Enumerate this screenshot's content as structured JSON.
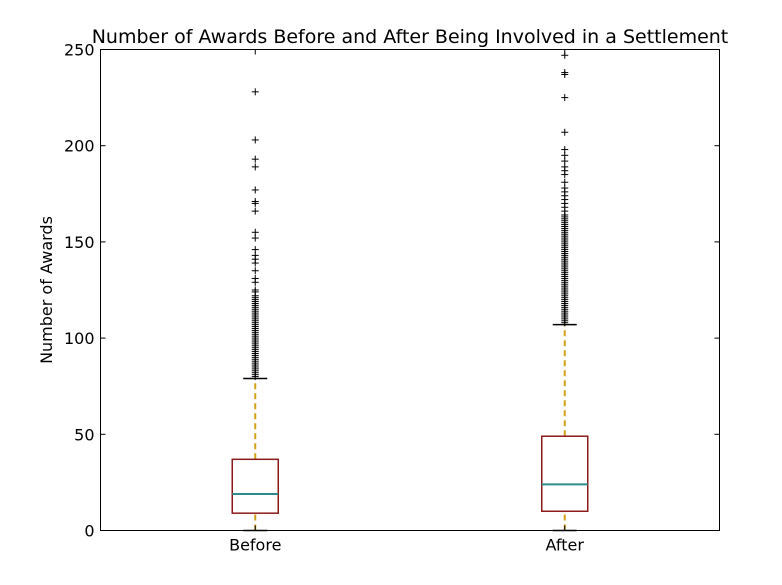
{
  "chart_data": {
    "type": "box",
    "title": "Number of Awards Before and After Being Involved in a Settlement",
    "xlabel": "",
    "ylabel": "Number of Awards",
    "ylim": [
      0,
      250
    ],
    "yticks": [
      0,
      50,
      100,
      150,
      200,
      250
    ],
    "grid": false,
    "legend": "none",
    "categories": [
      "Before",
      "After"
    ],
    "boxes": [
      {
        "label": "Before",
        "whisker_low": 0,
        "q1": 9,
        "median": 19,
        "q3": 37,
        "whisker_high": 79,
        "outliers": [
          80,
          81,
          82,
          83,
          84,
          85,
          86,
          87,
          88,
          89,
          90,
          91,
          92,
          93,
          94,
          95,
          96,
          97,
          98,
          99,
          100,
          101,
          102,
          103,
          104,
          105,
          106,
          107,
          108,
          109,
          110,
          111,
          112,
          113,
          114,
          115,
          116,
          117,
          118,
          119,
          120,
          121,
          122,
          124,
          125,
          129,
          131,
          135,
          139,
          141,
          143,
          146,
          152,
          155,
          166,
          170,
          171,
          177,
          189,
          193,
          203,
          228
        ]
      },
      {
        "label": "After",
        "whisker_low": 0,
        "q1": 10,
        "median": 24,
        "q3": 49,
        "whisker_high": 107,
        "outliers": [
          108,
          109,
          110,
          111,
          112,
          113,
          114,
          115,
          116,
          117,
          118,
          119,
          120,
          121,
          122,
          123,
          124,
          125,
          126,
          127,
          128,
          129,
          130,
          131,
          132,
          133,
          134,
          135,
          136,
          137,
          138,
          139,
          140,
          141,
          142,
          143,
          144,
          145,
          146,
          147,
          148,
          149,
          150,
          151,
          152,
          153,
          154,
          155,
          156,
          157,
          158,
          159,
          160,
          161,
          162,
          163,
          164,
          166,
          168,
          170,
          172,
          174,
          176,
          178,
          181,
          185,
          187,
          189,
          192,
          195,
          198,
          207,
          225,
          237,
          238,
          247
        ]
      }
    ],
    "colors": {
      "box_edge": "#8B1A1A",
      "median": "#2E8B8B",
      "whisker": "#D4A017",
      "cap": "#000000",
      "outlier": "#000000"
    }
  }
}
